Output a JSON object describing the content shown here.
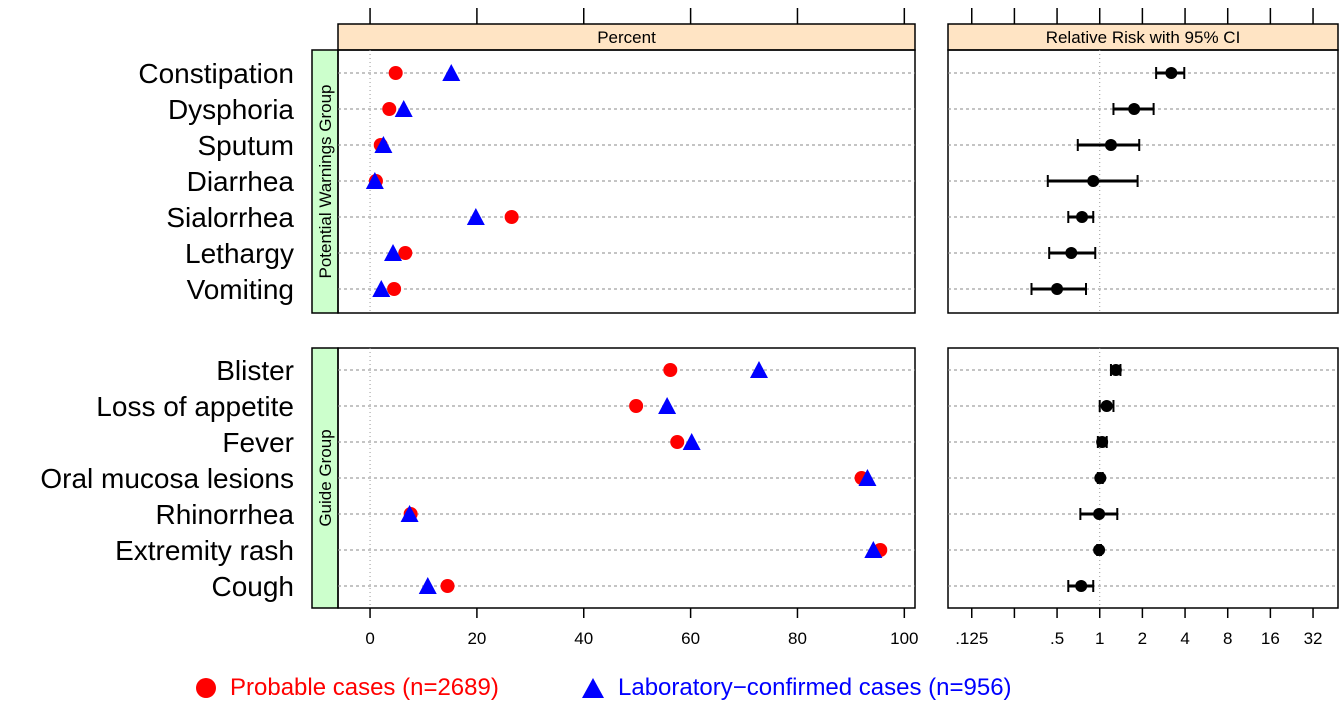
{
  "colors": {
    "probable": "#ff0000",
    "confirmed": "#0000ff",
    "rr": "#000000",
    "strip_top": "#ffe4c4",
    "strip_left": "#ccffcc"
  },
  "chart_data": [
    {
      "type": "scatter",
      "title": "Percent",
      "xlim": [
        -6,
        102
      ],
      "xticks": [
        0,
        20,
        40,
        60,
        80,
        100
      ],
      "grid": "dashed horizontal per category, dotted vertical at 0",
      "series_names": [
        "Probable cases (n=2689)",
        "Laboratory−confirmed cases (n=956)"
      ],
      "panels": [
        {
          "strip": "Potential Warnings Group",
          "categories": [
            "Constipation",
            "Dysphoria",
            "Sputum",
            "Diarrhea",
            "Sialorrhea",
            "Lethargy",
            "Vomiting"
          ],
          "probable": [
            4.8,
            3.6,
            2.0,
            1.1,
            26.5,
            6.6,
            4.5
          ],
          "confirmed": [
            15.2,
            6.3,
            2.5,
            0.9,
            19.8,
            4.3,
            2.1
          ]
        },
        {
          "strip": "Guide Group",
          "categories": [
            "Blister",
            "Loss of appetite",
            "Fever",
            "Oral mucosa lesions",
            "Rhinorrhea",
            "Extremity rash",
            "Cough"
          ],
          "probable": [
            56.2,
            49.8,
            57.5,
            92.0,
            7.6,
            95.5,
            14.5
          ],
          "confirmed": [
            72.8,
            55.6,
            60.2,
            93.1,
            7.4,
            94.2,
            10.8
          ]
        }
      ]
    },
    {
      "type": "scatter",
      "title": "Relative Risk with 95% CI",
      "scale": "log2",
      "xlim": [
        0.085,
        48
      ],
      "xticks": [
        0.125,
        0.25,
        0.5,
        1,
        2,
        4,
        8,
        16,
        32
      ],
      "xticklabels": [
        ".125",
        "",
        ".5",
        "1",
        "2",
        "4",
        "8",
        "16",
        "32"
      ],
      "grid": "dashed horizontal per category, dotted vertical at 1",
      "panels": [
        {
          "categories": [
            "Constipation",
            "Dysphoria",
            "Sputum",
            "Diarrhea",
            "Sialorrhea",
            "Lethargy",
            "Vomiting"
          ],
          "rr": [
            3.2,
            1.75,
            1.2,
            0.9,
            0.75,
            0.63,
            0.5
          ],
          "lo": [
            2.5,
            1.25,
            0.7,
            0.43,
            0.6,
            0.44,
            0.33
          ],
          "hi": [
            3.95,
            2.4,
            1.9,
            1.85,
            0.9,
            0.93,
            0.8
          ]
        },
        {
          "categories": [
            "Blister",
            "Loss of appetite",
            "Fever",
            "Oral mucosa lesions",
            "Rhinorrhea",
            "Extremity rash",
            "Cough"
          ],
          "rr": [
            1.3,
            1.12,
            1.04,
            1.01,
            0.99,
            0.99,
            0.74
          ],
          "lo": [
            1.2,
            1.0,
            0.97,
            0.97,
            0.73,
            0.96,
            0.6
          ],
          "hi": [
            1.4,
            1.25,
            1.12,
            1.05,
            1.33,
            1.02,
            0.9
          ]
        }
      ]
    }
  ],
  "legend": {
    "probable_label": "Probable cases (n=2689)",
    "confirmed_label": "Laboratory−confirmed cases (n=956)"
  }
}
